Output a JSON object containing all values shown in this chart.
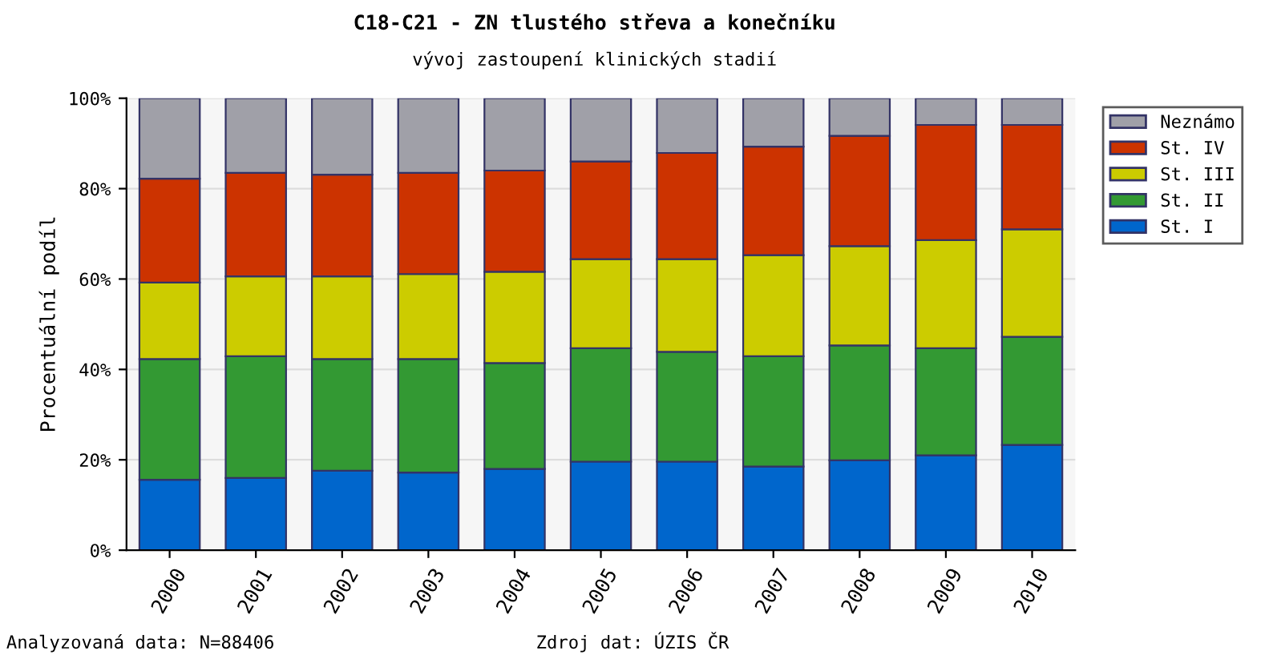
{
  "chart_data": {
    "type": "bar",
    "stacked": true,
    "title": "C18-C21 - ZN tlustého střeva a konečníku",
    "subtitle": "vývoj zastoupení klinických stadií",
    "ylabel": "Procentuální podíl",
    "categories": [
      "2000",
      "2001",
      "2002",
      "2003",
      "2004",
      "2005",
      "2006",
      "2007",
      "2008",
      "2009",
      "2010"
    ],
    "series": [
      {
        "name": "St. I",
        "color": "#0066cc",
        "values": [
          15.6,
          16.0,
          17.6,
          17.2,
          18.0,
          19.6,
          19.6,
          18.5,
          19.9,
          21.0,
          23.3
        ]
      },
      {
        "name": "St. II",
        "color": "#339933",
        "values": [
          26.7,
          26.9,
          24.7,
          25.1,
          23.4,
          25.1,
          24.3,
          24.4,
          25.4,
          23.7,
          23.9
        ]
      },
      {
        "name": "St. III",
        "color": "#cccc00",
        "values": [
          16.9,
          17.7,
          18.3,
          18.8,
          20.2,
          19.7,
          20.5,
          22.4,
          22.0,
          23.9,
          23.8
        ]
      },
      {
        "name": "St. IV",
        "color": "#cc3300",
        "values": [
          23.0,
          22.9,
          22.5,
          22.4,
          22.4,
          21.6,
          23.5,
          24.0,
          24.4,
          25.5,
          23.1
        ]
      },
      {
        "name": "Neznámo",
        "color": "#a0a0a8",
        "values": [
          17.8,
          16.5,
          16.9,
          16.5,
          16.0,
          14.0,
          12.1,
          10.7,
          8.3,
          5.9,
          5.9
        ]
      }
    ],
    "ylim": [
      0,
      100
    ],
    "yticks": [
      {
        "value": 0,
        "label": "0%"
      },
      {
        "value": 20,
        "label": "20%"
      },
      {
        "value": 40,
        "label": "40%"
      },
      {
        "value": 60,
        "label": "60%"
      },
      {
        "value": 80,
        "label": "80%"
      },
      {
        "value": 100,
        "label": "100%"
      }
    ],
    "grid": "y",
    "legend": "right",
    "annotations": [
      "Analyzovaná data: N=88406",
      "Zdroj dat: ÚZIS ČR"
    ]
  }
}
